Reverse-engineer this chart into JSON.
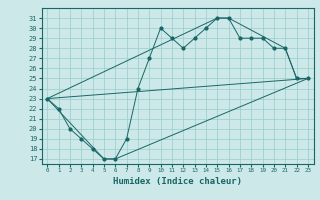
{
  "title": "",
  "xlabel": "Humidex (Indice chaleur)",
  "bg_color": "#cce8e8",
  "grid_color": "#99cccc",
  "line_color": "#1a6666",
  "xlim": [
    -0.5,
    23.5
  ],
  "ylim": [
    16.5,
    32.0
  ],
  "xticks": [
    0,
    1,
    2,
    3,
    4,
    5,
    6,
    7,
    8,
    9,
    10,
    11,
    12,
    13,
    14,
    15,
    16,
    17,
    18,
    19,
    20,
    21,
    22,
    23
  ],
  "yticks": [
    17,
    18,
    19,
    20,
    21,
    22,
    23,
    24,
    25,
    26,
    27,
    28,
    29,
    30,
    31
  ],
  "main_line": {
    "x": [
      0,
      1,
      2,
      3,
      4,
      5,
      6,
      7,
      8,
      9,
      10,
      11,
      12,
      13,
      14,
      15,
      16,
      17,
      18,
      19,
      20,
      21,
      22,
      23
    ],
    "y": [
      23,
      22,
      20,
      19,
      18,
      17,
      17,
      19,
      24,
      27,
      30,
      29,
      28,
      29,
      30,
      31,
      31,
      29,
      29,
      29,
      28,
      28,
      25,
      25
    ]
  },
  "lower_line": {
    "x": [
      0,
      5,
      6,
      23
    ],
    "y": [
      23,
      17,
      17,
      25
    ]
  },
  "upper_line": {
    "x": [
      0,
      15,
      16,
      21,
      22,
      23
    ],
    "y": [
      23,
      31,
      31,
      28,
      25,
      25
    ]
  },
  "diag_line": {
    "x": [
      0,
      23
    ],
    "y": [
      23,
      25
    ]
  }
}
